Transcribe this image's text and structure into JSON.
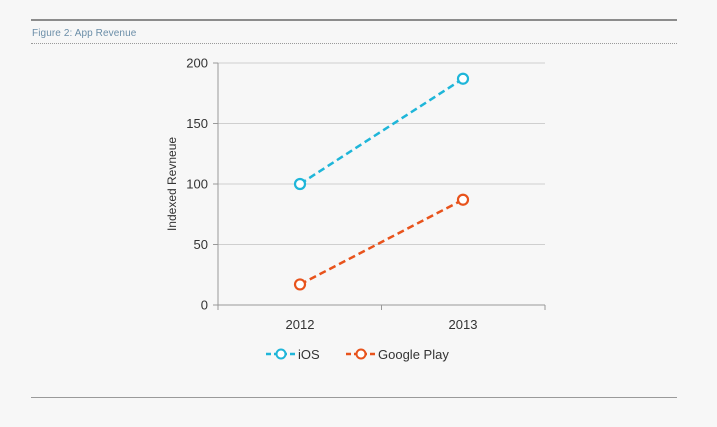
{
  "figure": {
    "caption": "Figure 2: App Revenue"
  },
  "chart_data": {
    "type": "line",
    "title": "",
    "xlabel": "",
    "ylabel": "Indexed Revneue",
    "categories": [
      "2012",
      "2013"
    ],
    "ylim": [
      0,
      200
    ],
    "yticks": [
      0,
      50,
      100,
      150,
      200
    ],
    "grid": true,
    "legend_position": "bottom-center",
    "series": [
      {
        "name": "iOS",
        "values": [
          100,
          187
        ],
        "color": "#1fb6d9",
        "line_style": "dashed",
        "marker": "open-circle"
      },
      {
        "name": "Google Play",
        "values": [
          17,
          87
        ],
        "color": "#e8531c",
        "line_style": "dashed",
        "marker": "open-circle"
      }
    ]
  }
}
